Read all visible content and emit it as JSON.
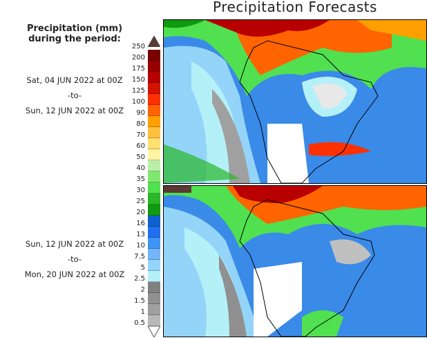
{
  "title": "Precipitation Forecasts",
  "legend": {
    "header": [
      "Precipitation (mm)",
      "during the period:"
    ],
    "ticks": [
      "250",
      "200",
      "175",
      "150",
      "125",
      "100",
      "90",
      "80",
      "70",
      "60",
      "50",
      "40",
      "35",
      "30",
      "25",
      "20",
      "16",
      "13",
      "10",
      "7.5",
      "5",
      "2.5",
      "2",
      "1.5",
      "1",
      "0.5"
    ],
    "colors": [
      "#7a0000",
      "#9a0000",
      "#b80000",
      "#d41200",
      "#ff3000",
      "#ff6400",
      "#ffa000",
      "#ffc040",
      "#ffe070",
      "#fff4a4",
      "#b8f0a8",
      "#80e870",
      "#50e050",
      "#28b828",
      "#109a10",
      "#1060d0",
      "#2070f0",
      "#4094f4",
      "#74b4f8",
      "#94d4f8",
      "#b4f0f8",
      "#808080",
      "#909090",
      "#a0a0a0",
      "#b8b8b8"
    ],
    "over_color": "#5a3a32",
    "under_color": "#ffffff"
  },
  "periods": [
    {
      "start": "Sat, 04 JUN 2022 at 00Z",
      "sep": "-to-",
      "end": "Sun, 12 JUN 2022 at 00Z"
    },
    {
      "start": "Sun, 12 JUN 2022 at 00Z",
      "sep": "-to-",
      "end": "Mon, 20 JUN 2022 at 00Z"
    }
  ]
}
